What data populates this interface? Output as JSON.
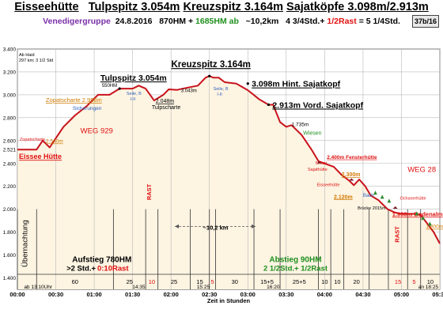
{
  "header": {
    "title_parts": [
      "Eisseehütte",
      "Tulpspitz 3.054m",
      "Kreuzspitz 3.164m",
      "Sajatköpfe 3.098m/2.913m"
    ],
    "group": "Venedigergruppe",
    "date": "24.8.2016",
    "up": "870HM +",
    "up2": "1685HM ab",
    "distance": "~10,2km",
    "time_a": "4 3/4Std.+",
    "rest": "1/2Rast",
    "time_total": "= 5 1/4Std.",
    "badge": "37b/16"
  },
  "colors": {
    "profile": "#c8131b",
    "fill": "#fdf4e2",
    "text_red": "#e01010",
    "text_green": "#1f8f1f",
    "text_orange": "#d07a00",
    "text_blue": "#3060c0"
  },
  "chart_data": {
    "type": "line",
    "xlabel": "Zeit in Stunden",
    "ylabel": "",
    "xlim": [
      0,
      5.5
    ],
    "ylim": [
      1300,
      3400
    ],
    "x_ticks": [
      "00:00",
      "00:30",
      "01:00",
      "01:30",
      "02:00",
      "02:30",
      "03:00",
      "03:30",
      "04:00",
      "04:30",
      "05:00",
      "05:30"
    ],
    "y_ticks": [
      "1.400",
      "1.600",
      "1.800",
      "2.000",
      "2.200",
      "2.400",
      "2.600",
      "2.800",
      "3.000",
      "3.200",
      "3.400"
    ],
    "y_extra_tick": "2.521",
    "series": [
      {
        "x": [
          0.0,
          0.25,
          0.33,
          0.42,
          0.5,
          0.6,
          0.75,
          0.9,
          1.05,
          1.2,
          1.33,
          1.5,
          1.58,
          1.67,
          1.78,
          1.9,
          1.97,
          2.08,
          2.2,
          2.35,
          2.45,
          2.5,
          2.55,
          2.62,
          2.7,
          2.85,
          3.0,
          3.15,
          3.27,
          3.33,
          3.42,
          3.5,
          3.57,
          3.7,
          3.83,
          3.92,
          4.0,
          4.12,
          4.22,
          4.32,
          4.38,
          4.45,
          4.53,
          4.6,
          4.7,
          4.82,
          4.92,
          5.0,
          5.17,
          5.25,
          5.33,
          5.42,
          5.5
        ],
        "y": [
          2521,
          2521,
          2600,
          2540,
          2620,
          2720,
          2820,
          2900,
          3000,
          3000,
          3054,
          3054,
          3080,
          3054,
          2950,
          3000,
          3048,
          3043,
          3060,
          3080,
          3150,
          3164,
          3150,
          3150,
          3110,
          3098,
          3040,
          2960,
          2913,
          2913,
          2760,
          2720,
          2735,
          2650,
          2520,
          2420,
          2400,
          2370,
          2300,
          2250,
          2210,
          2260,
          2200,
          2120,
          2080,
          2000,
          1970,
          1960,
          1960,
          1950,
          1880,
          1800,
          1700
        ]
      }
    ],
    "peaks": [
      {
        "label": "Tulpspitz 3.054m",
        "sub": "550HM"
      },
      {
        "label": "Kreuzspitz 3.164m",
        "sub": ""
      },
      {
        "label": "3.098m Hint. Sajatkopf",
        "sub": ""
      },
      {
        "label": "2.913m Vord. Sajatkopf",
        "sub": ""
      }
    ],
    "annotations": {
      "start_label": "Eissee Hütte",
      "start_top": "Ab Haid",
      "start_top2": "297 km; 3 1/2 Std",
      "zopat_small": "Zopatscharte",
      "alt_2540": "2.540m",
      "zopat_big": "Zopatscharte 2.958m",
      "sicherungen": "Sicherungen",
      "seile1": "Seile, B",
      "seile1b": "I-II",
      "seile2": "Seile, B",
      "seile2b": "I-II",
      "alt_2048": "2.048m",
      "tulpscharte": "Tulpscharte",
      "alt_3043": "3.043m",
      "weg929": "WEG 929",
      "weg28": "WEG 28",
      "alt_1735": "1.735m",
      "wiesen": "Wiesen",
      "fenster_rast": "5Rast",
      "fenster": "2.400m Fensterhütte",
      "sajat_huette": "Sajathütte",
      "alt_2300": "2.300m",
      "eissee2": "Eisseehütte",
      "alt_2120": "2.120m",
      "bach": "Bach",
      "bruecke": "Brücke 2015m",
      "ochsner": "Ochsnerhütte",
      "bodenalm": "1.960m Bodenalm",
      "alt_1800": "1.800m",
      "uebernachtung": "Übernachtung",
      "rast1": "RAST",
      "rast2": "RAST",
      "distance": "~10,2 km",
      "aufstieg": "Aufstieg 780HM",
      "aufstieg_time": ">2 Std.+",
      "aufstieg_rast": "0:10Rast",
      "abstieg": "Abstieg 90HM",
      "abstieg_time": "2 1/2Std.+ 1/2Rast",
      "start_time": "ab 13:10Uhr",
      "end_time": "an 18:25",
      "time_1435": "14:35",
      "time_1525": "15:25",
      "time_1620": "16:20"
    },
    "segments": [
      {
        "x": 0.0,
        "label": "",
        "color": "#000"
      },
      {
        "x": 0.25,
        "label": "60",
        "color": "#000"
      },
      {
        "x": 1.25,
        "label": "25",
        "color": "#000"
      },
      {
        "x": 1.67,
        "label": "10",
        "color": "#e01010"
      },
      {
        "x": 1.83,
        "label": "25",
        "color": "#000"
      },
      {
        "x": 2.25,
        "label": "15",
        "color": "#000"
      },
      {
        "x": 2.5,
        "label": "5",
        "color": "#e01010"
      },
      {
        "x": 2.58,
        "label": "30",
        "color": "#000"
      },
      {
        "x": 3.08,
        "label": "15+5",
        "color": "#000"
      },
      {
        "x": 3.42,
        "label": "25+5",
        "color": "#000"
      },
      {
        "x": 3.92,
        "label": "10",
        "color": "#000"
      },
      {
        "x": 4.08,
        "label": "10",
        "color": "#000"
      },
      {
        "x": 4.25,
        "label": "20",
        "color": "#000"
      },
      {
        "x": 4.58,
        "label": "",
        "color": "#000"
      },
      {
        "x": 4.83,
        "label": "15",
        "color": "#e01010"
      },
      {
        "x": 5.08,
        "label": "5",
        "color": "#e01010"
      },
      {
        "x": 5.25,
        "label": "10",
        "color": "#000"
      }
    ],
    "segment_end": 5.5
  }
}
